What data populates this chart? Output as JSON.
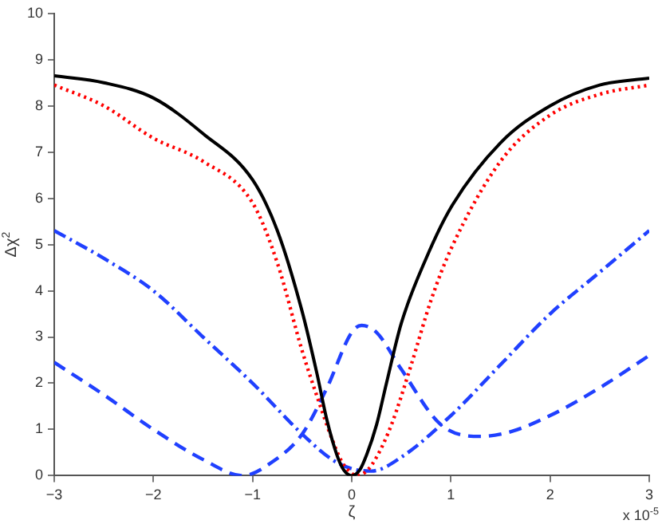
{
  "chart_data": {
    "type": "line",
    "xlabel": "ζ",
    "ylabel": "Δχ$^{2}$",
    "annotations": [
      "x 10$^{-5}$"
    ],
    "xlim": [
      -3,
      3
    ],
    "ylim": [
      0,
      10
    ],
    "xticks": [
      -3,
      -2,
      -1,
      0,
      1,
      2,
      3
    ],
    "yticks": [
      0,
      1,
      2,
      3,
      4,
      5,
      6,
      7,
      8,
      9,
      10
    ],
    "grid": false,
    "legend": false,
    "marker": "none",
    "series": [
      {
        "color": "#000000",
        "line_style": "solid",
        "x": [
          -3,
          -2.5,
          -2,
          -1.5,
          -1,
          -0.75,
          -0.5,
          -0.35,
          -0.25,
          -0.15,
          -0.08,
          0,
          0.08,
          0.15,
          0.25,
          0.35,
          0.5,
          0.75,
          1,
          1.5,
          2,
          2.5,
          3
        ],
        "values": [
          8.65,
          8.5,
          8.17,
          7.4,
          6.4,
          5.3,
          3.55,
          2.2,
          1.2,
          0.45,
          0.12,
          0,
          0.12,
          0.45,
          1.1,
          2,
          3.3,
          4.7,
          5.8,
          7.2,
          8.0,
          8.45,
          8.6
        ]
      },
      {
        "color": "#ff0000",
        "line_style": "dotted",
        "x": [
          -3,
          -2.5,
          -2,
          -1.5,
          -1,
          -0.75,
          -0.5,
          -0.3,
          -0.2,
          -0.1,
          0,
          0.05,
          0.15,
          0.25,
          0.4,
          0.6,
          0.8,
          1,
          1.5,
          2,
          2.5,
          3
        ],
        "values": [
          8.45,
          8.0,
          7.3,
          6.8,
          5.9,
          4.6,
          2.7,
          1.4,
          0.8,
          0.3,
          0.05,
          0,
          0.1,
          0.4,
          1.1,
          2.4,
          3.8,
          4.9,
          6.8,
          7.8,
          8.25,
          8.45
        ]
      },
      {
        "color": "#2040ff",
        "line_style": "dashdot",
        "x": [
          -3,
          -2.5,
          -2,
          -1.5,
          -1,
          -0.5,
          -0.2,
          0,
          0.2,
          0.5,
          1,
          1.5,
          2,
          2.5,
          3
        ],
        "values": [
          5.3,
          4.7,
          4.0,
          3.0,
          2.0,
          0.9,
          0.35,
          0.15,
          0.1,
          0.4,
          1.3,
          2.4,
          3.5,
          4.4,
          5.3
        ]
      },
      {
        "color": "#2040ff",
        "line_style": "dashed",
        "x": [
          -3,
          -2.5,
          -2,
          -1.5,
          -1.1,
          -0.8,
          -0.5,
          -0.25,
          0,
          0.1,
          0.25,
          0.5,
          0.9,
          1.3,
          1.6,
          2,
          2.5,
          3
        ],
        "values": [
          2.45,
          1.75,
          1.0,
          0.35,
          0,
          0.3,
          0.9,
          1.9,
          3.1,
          3.25,
          3.1,
          2.3,
          1.1,
          0.85,
          0.95,
          1.3,
          1.9,
          2.6
        ]
      }
    ]
  }
}
